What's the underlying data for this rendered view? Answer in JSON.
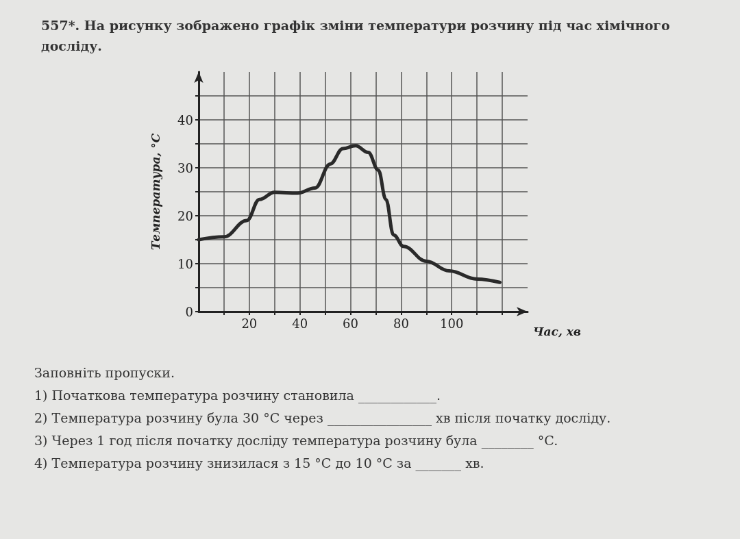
{
  "chart_data": {
    "type": "line",
    "title": "557*. На рисунку зображено графік зміни температури розчину під час хімічного досліду.",
    "xlabel": "Час, хв",
    "ylabel": "Температура, °C",
    "x": [
      0,
      10,
      19,
      24,
      30,
      39,
      46,
      52,
      57,
      62,
      67,
      71,
      74,
      77,
      81,
      90,
      99,
      110,
      119
    ],
    "series": [
      {
        "color": "#2a2a2a",
        "values": [
          15,
          15.6,
          19,
          23.4,
          24.9,
          24.7,
          25.8,
          30.8,
          34,
          34.6,
          33.2,
          29.5,
          23.4,
          16,
          13.6,
          10.5,
          8.5,
          6.8,
          6.1
        ]
      }
    ],
    "xlim": [
      0,
      130
    ],
    "ylim": [
      0,
      50
    ],
    "xticks": [
      {
        "value": 10,
        "label": null
      },
      20,
      {
        "value": 30,
        "label": null
      },
      40,
      {
        "value": 50,
        "label": null
      },
      60,
      {
        "value": 70,
        "label": null
      },
      80,
      {
        "value": 90,
        "label": null
      },
      100,
      {
        "value": 110,
        "label": null
      },
      {
        "value": 120,
        "label": null
      }
    ],
    "yticks": [
      0,
      {
        "value": 5,
        "label": null
      },
      10,
      {
        "value": 15,
        "label": null
      },
      20,
      {
        "value": 25,
        "label": null
      },
      30,
      {
        "value": 35,
        "label": null
      },
      40,
      {
        "value": 45,
        "label": null
      }
    ],
    "grid": true,
    "marker": "none",
    "line_style": "solid",
    "annotations": [
      "Заповніть пропуски.",
      "1) Початкова температура розчину становила ____________.",
      "2) Температура розчину була 30 °C через ________________ хв після початку досліду.",
      "3) Через 1 год після початку досліду температура розчину була ________ °C.",
      "4) Температура розчину знизилася з 15 °C до 10 °C за _______ хв."
    ]
  }
}
